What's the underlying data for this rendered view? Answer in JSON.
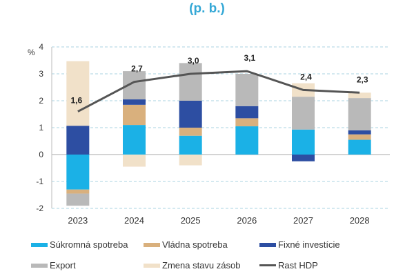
{
  "chart_data": {
    "type": "bar",
    "subtitle": "(p. b.)",
    "ylabel": "%",
    "xlabel": "",
    "ylim": [
      -2,
      4
    ],
    "yticks": [
      -2,
      -1,
      0,
      1,
      2,
      3,
      4
    ],
    "grid": true,
    "legend_position": "bottom",
    "categories": [
      "2023",
      "2024",
      "2025",
      "2026",
      "2027",
      "2028"
    ],
    "series": [
      {
        "name": "Súkromná spotreba",
        "kind": "bar",
        "color": "#1bb1e6",
        "values": [
          -1.3,
          1.1,
          0.7,
          1.05,
          0.93,
          0.55
        ]
      },
      {
        "name": "Vládna spotreba",
        "kind": "bar",
        "color": "#d9b07d",
        "values": [
          -0.15,
          0.75,
          0.3,
          0.3,
          0.0,
          0.2
        ]
      },
      {
        "name": "Fixné investície",
        "kind": "bar",
        "color": "#2d4ea2",
        "values": [
          1.07,
          0.2,
          1.0,
          0.45,
          -0.25,
          0.15
        ]
      },
      {
        "name": "Export",
        "kind": "bar",
        "color": "#b9b9b9",
        "values": [
          -0.45,
          1.05,
          1.4,
          1.2,
          1.22,
          1.2
        ]
      },
      {
        "name": "Zmena stavu zásob",
        "kind": "bar",
        "color": "#f1e1c9",
        "values": [
          2.4,
          -0.45,
          -0.4,
          0.0,
          0.5,
          0.2
        ]
      },
      {
        "name": "Rast HDP",
        "kind": "line",
        "color": "#555555",
        "values": [
          1.6,
          2.7,
          3.0,
          3.1,
          2.4,
          2.3
        ]
      }
    ],
    "data_labels": [
      "1,6",
      "2,7",
      "3,0",
      "3,1",
      "2,4",
      "2,3"
    ]
  }
}
